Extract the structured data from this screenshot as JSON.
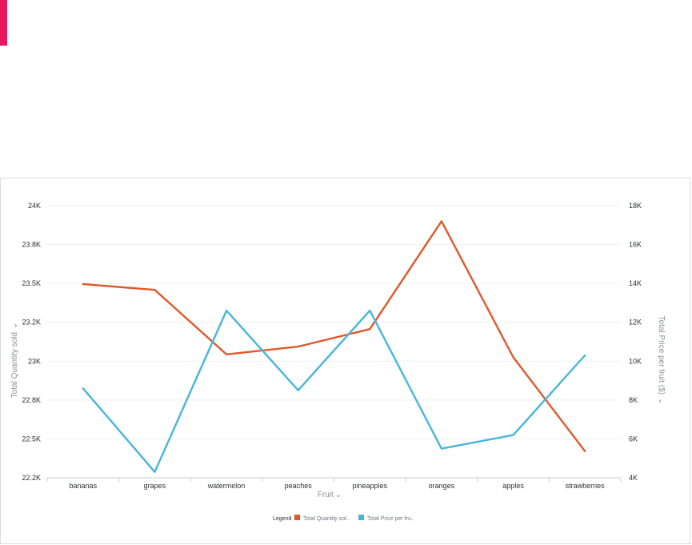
{
  "colors": {
    "accent": "#e8175d",
    "series_quantity": "#e0582a",
    "series_price": "#45b6da",
    "grid": "#eef0f3"
  },
  "chart_data": {
    "type": "line",
    "categories": [
      "bananas",
      "grapes",
      "watermelon",
      "peaches",
      "pineapples",
      "oranges",
      "apples",
      "strawberries"
    ],
    "xlabel": "Fruit",
    "y_left": {
      "label": "Total Quantity sold",
      "ticks": [
        "22.2K",
        "22.5K",
        "22.8K",
        "23K",
        "23.2K",
        "23.5K",
        "23.8K",
        "24K"
      ]
    },
    "y_right": {
      "label": "Total Price per fruit ($)",
      "ticks": [
        "4K",
        "6K",
        "8K",
        "10K",
        "12K",
        "14K",
        "16K",
        "18K"
      ],
      "ylim": [
        4000,
        18000
      ]
    },
    "series": [
      {
        "name": "Total Quantity sol..",
        "axis": "left",
        "values": [
          23495,
          23450,
          23035,
          23075,
          23165,
          23920,
          23020,
          22405
        ]
      },
      {
        "name": "Total Price per fru..",
        "axis": "right",
        "values": [
          8600,
          4300,
          12600,
          8500,
          12600,
          5500,
          6200,
          10300
        ]
      }
    ],
    "legend": {
      "title": "Legend",
      "placement": "bottom"
    },
    "grid": true
  }
}
